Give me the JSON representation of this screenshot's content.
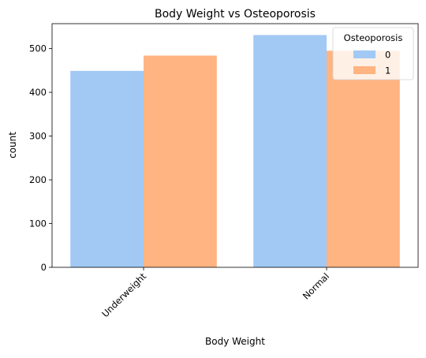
{
  "chart_data": {
    "type": "bar",
    "title": "Body Weight vs Osteoporosis",
    "xlabel": "Body Weight",
    "ylabel": "count",
    "categories": [
      "Underweight",
      "Normal"
    ],
    "series": [
      {
        "name": "0",
        "values": [
          449,
          531
        ],
        "color": "#a1c9f4"
      },
      {
        "name": "1",
        "values": [
          484,
          495
        ],
        "color": "#ffb482"
      }
    ],
    "ylim": [
      0,
      557
    ],
    "yticks": [
      0,
      100,
      200,
      300,
      400,
      500
    ],
    "grid": false,
    "legend": {
      "title": "Osteoporosis",
      "placement": "top-right"
    },
    "xtick_rotation_deg": 45
  }
}
